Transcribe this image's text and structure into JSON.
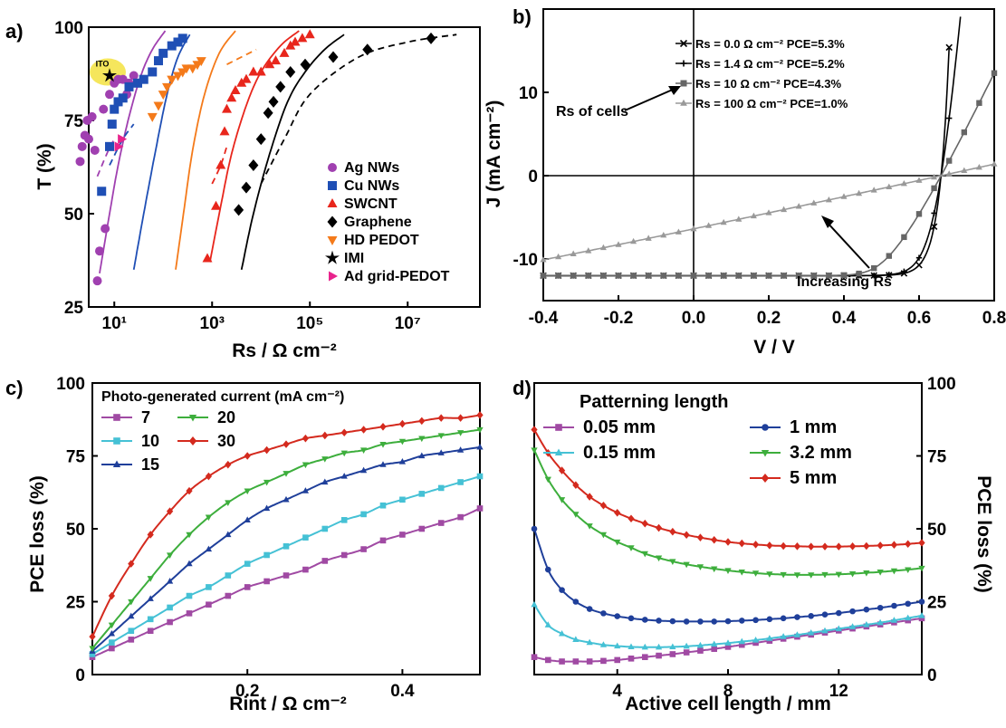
{
  "chart_data": [
    {
      "panel": "a)",
      "type": "scatter",
      "xscale": "log",
      "xlabel": "Rs / Ω cm⁻²",
      "ylabel": "T (%)",
      "xlim": [
        3,
        300000000
      ],
      "ylim": [
        25,
        100
      ],
      "xticks": [
        {
          "v": 10,
          "label": "10¹"
        },
        {
          "v": 1000,
          "label": "10³"
        },
        {
          "v": 100000,
          "label": "10⁵"
        },
        {
          "v": 10000000,
          "label": "10⁷"
        }
      ],
      "yticks": [
        25,
        50,
        75,
        100
      ],
      "ito_label": "ITO",
      "ito_point": [
        8,
        87
      ],
      "series": [
        {
          "name": "Ag NWs",
          "color": "#a040b0",
          "marker": "circle",
          "points": [
            [
              4.5,
              32
            ],
            [
              5,
              40
            ],
            [
              6.5,
              46
            ],
            [
              2,
              64
            ],
            [
              2.2,
              68
            ],
            [
              2.5,
              71
            ],
            [
              3,
              70
            ],
            [
              2.8,
              75
            ],
            [
              3.5,
              76
            ],
            [
              4,
              67
            ],
            [
              6,
              78
            ],
            [
              8,
              82
            ],
            [
              10,
              85
            ],
            [
              12,
              86
            ],
            [
              15,
              86
            ],
            [
              20,
              85
            ],
            [
              25,
              87
            ],
            [
              18,
              82
            ]
          ],
          "fit": [
            [
              5,
              34
            ],
            [
              8,
              50
            ],
            [
              12,
              63
            ],
            [
              20,
              76
            ],
            [
              35,
              87
            ],
            [
              60,
              94
            ],
            [
              110,
              99
            ]
          ],
          "dash": [
            [
              4.5,
              60
            ],
            [
              7,
              66
            ],
            [
              10,
              70
            ]
          ]
        },
        {
          "name": "Cu NWs",
          "color": "#1f4fb5",
          "marker": "square",
          "points": [
            [
              5.5,
              56
            ],
            [
              8,
              68
            ],
            [
              9,
              74
            ],
            [
              10,
              78
            ],
            [
              12,
              80
            ],
            [
              15,
              81
            ],
            [
              20,
              84
            ],
            [
              30,
              85
            ],
            [
              40,
              86
            ],
            [
              60,
              88
            ],
            [
              80,
              91
            ],
            [
              100,
              93
            ],
            [
              150,
              95
            ],
            [
              200,
              96
            ],
            [
              250,
              97
            ]
          ],
          "fit": [
            [
              25,
              35
            ],
            [
              40,
              50
            ],
            [
              70,
              67
            ],
            [
              120,
              82
            ],
            [
              200,
              92
            ],
            [
              350,
              98
            ]
          ],
          "dash": [
            [
              8,
              63
            ],
            [
              15,
              70
            ],
            [
              25,
              74
            ]
          ]
        },
        {
          "name": "SWCNT",
          "color": "#e8261c",
          "marker": "triangle",
          "points": [
            [
              800,
              38
            ],
            [
              1200,
              52
            ],
            [
              1500,
              63
            ],
            [
              1800,
              72
            ],
            [
              2000,
              78
            ],
            [
              2500,
              81
            ],
            [
              3000,
              83
            ],
            [
              4000,
              85
            ],
            [
              5000,
              86
            ],
            [
              7000,
              88
            ],
            [
              10000,
              88
            ],
            [
              15000,
              90
            ],
            [
              20000,
              91
            ],
            [
              30000,
              93
            ],
            [
              40000,
              95
            ],
            [
              50000,
              96
            ],
            [
              70000,
              97
            ],
            [
              100000,
              98
            ]
          ],
          "fit": [
            [
              900,
              37
            ],
            [
              1500,
              52
            ],
            [
              2500,
              66
            ],
            [
              5000,
              79
            ],
            [
              10000,
              88
            ],
            [
              25000,
              95
            ],
            [
              60000,
              99
            ]
          ],
          "dash": [
            [
              1000,
              58
            ],
            [
              1500,
              63
            ],
            [
              2000,
              68
            ]
          ]
        },
        {
          "name": "Graphene",
          "color": "#000000",
          "marker": "diamond",
          "points": [
            [
              3500,
              51
            ],
            [
              5000,
              57
            ],
            [
              7000,
              63
            ],
            [
              10000,
              70
            ],
            [
              14000,
              77
            ],
            [
              18000,
              80
            ],
            [
              25000,
              84
            ],
            [
              40000,
              88
            ],
            [
              80000,
              90
            ],
            [
              300000,
              92
            ],
            [
              1500000,
              94
            ],
            [
              30000000,
              97
            ]
          ],
          "fit": [
            [
              4000,
              35
            ],
            [
              7000,
              50
            ],
            [
              15000,
              66
            ],
            [
              35000,
              80
            ],
            [
              80000,
              88
            ],
            [
              200000,
              94
            ],
            [
              500000,
              98
            ]
          ],
          "dash": [
            [
              10000,
              58
            ],
            [
              30000,
              70
            ],
            [
              100000,
              82
            ],
            [
              1000000,
              92
            ],
            [
              10000000,
              96
            ],
            [
              100000000,
              98
            ]
          ]
        },
        {
          "name": "HD PEDOT",
          "color": "#f47a1a",
          "marker": "triangle-down",
          "points": [
            [
              60,
              76
            ],
            [
              80,
              79
            ],
            [
              100,
              82
            ],
            [
              120,
              84
            ],
            [
              150,
              86
            ],
            [
              200,
              87
            ],
            [
              250,
              88
            ],
            [
              300,
              89
            ],
            [
              400,
              89
            ],
            [
              500,
              90
            ],
            [
              600,
              91
            ]
          ],
          "fit": [
            [
              180,
              35
            ],
            [
              260,
              50
            ],
            [
              400,
              67
            ],
            [
              700,
              82
            ],
            [
              1400,
              93
            ],
            [
              3000,
              99
            ]
          ],
          "dash": [
            [
              2000,
              90
            ],
            [
              4000,
              92
            ],
            [
              8000,
              94
            ]
          ]
        },
        {
          "name": "IMI",
          "color": "#000000",
          "marker": "star",
          "points": [
            [
              8,
              87
            ]
          ]
        },
        {
          "name": "Ad grid-PEDOT",
          "color": "#e8238c",
          "marker": "triangle-right",
          "points": [
            [
              12,
              68
            ],
            [
              14,
              70
            ]
          ]
        }
      ]
    },
    {
      "panel": "b)",
      "type": "line",
      "xlabel": "V / V",
      "ylabel": "J (mA cm⁻²)",
      "xlim": [
        -0.4,
        0.8
      ],
      "ylim": [
        -15,
        20
      ],
      "xticks": [
        -0.4,
        -0.2,
        0.0,
        0.2,
        0.4,
        0.6,
        0.8
      ],
      "yticks": [
        -10,
        0,
        10
      ],
      "xticklabels": [
        "-0.4",
        "-0.2",
        "0.0",
        "0.2",
        "0.4",
        "0.6",
        "0.8"
      ],
      "annotation_rs": "Rs of cells",
      "annotation_inc": "Increasing Rs",
      "series": [
        {
          "name": "Rs = 0.0 Ω cm⁻² PCE=5.3%",
          "color": "#000000",
          "marker": "x",
          "rs": 0
        },
        {
          "name": "Rs = 1.4 Ω cm⁻² PCE=5.2%",
          "color": "#000000",
          "marker": "plus",
          "rs": 1.4
        },
        {
          "name": "Rs = 10 Ω cm⁻² PCE=4.3%",
          "color": "#666666",
          "marker": "square",
          "rs": 10
        },
        {
          "name": "Rs = 100 Ω cm⁻² PCE=1.0%",
          "color": "#999999",
          "marker": "triangle",
          "rs": 100
        }
      ]
    },
    {
      "panel": "c)",
      "type": "line",
      "xlabel": "Rint / Ω cm⁻²",
      "ylabel": "PCE loss (%)",
      "xlim": [
        0,
        0.5
      ],
      "ylim": [
        0,
        100
      ],
      "xticks": [
        0.2,
        0.4
      ],
      "xticklabels": [
        "0.2",
        "0.4"
      ],
      "yticks": [
        0,
        25,
        50,
        75,
        100
      ],
      "legend_title": "Photo-generated current (mA cm⁻²)",
      "x": [
        0.0,
        0.025,
        0.05,
        0.075,
        0.1,
        0.125,
        0.15,
        0.175,
        0.2,
        0.225,
        0.25,
        0.275,
        0.3,
        0.325,
        0.35,
        0.375,
        0.4,
        0.425,
        0.45,
        0.475,
        0.5
      ],
      "series": [
        {
          "name": "7",
          "color": "#a04aa3",
          "marker": "square",
          "values": [
            6,
            9,
            12,
            15,
            18,
            21,
            24,
            27,
            30,
            32,
            34,
            36,
            39,
            41,
            43,
            46,
            48,
            50,
            52,
            54,
            57
          ]
        },
        {
          "name": "10",
          "color": "#45c1d5",
          "marker": "square",
          "values": [
            7,
            11,
            15,
            19,
            23,
            27,
            30,
            34,
            38,
            41,
            44,
            47,
            50,
            53,
            55,
            58,
            60,
            62,
            64,
            66,
            68
          ]
        },
        {
          "name": "15",
          "color": "#1f3f9a",
          "marker": "triangle",
          "values": [
            8,
            14,
            20,
            26,
            32,
            38,
            43,
            48,
            53,
            57,
            60,
            63,
            66,
            68,
            70,
            72,
            73,
            75,
            76,
            77,
            78
          ]
        },
        {
          "name": "20",
          "color": "#3dae3c",
          "marker": "triangle-down",
          "values": [
            9,
            17,
            25,
            33,
            41,
            48,
            54,
            59,
            63,
            66,
            69,
            72,
            74,
            76,
            77,
            79,
            80,
            81,
            82,
            83,
            84
          ]
        },
        {
          "name": "30",
          "color": "#d42a1e",
          "marker": "diamond",
          "values": [
            13,
            27,
            38,
            48,
            56,
            63,
            68,
            72,
            75,
            77,
            79,
            81,
            82,
            83,
            84,
            85,
            86,
            87,
            88,
            88,
            89
          ]
        }
      ]
    },
    {
      "panel": "d)",
      "type": "line",
      "xlabel": "Active cell length / mm",
      "ylabel": "PCE loss (%)",
      "xlim": [
        1,
        15
      ],
      "ylim": [
        0,
        100
      ],
      "xticks": [
        4,
        8,
        12
      ],
      "xticklabels": [
        "4",
        "8",
        "12"
      ],
      "yticks": [
        0,
        25,
        50,
        75,
        100
      ],
      "legend_title": "Patterning length",
      "x": [
        1,
        1.5,
        2,
        2.5,
        3,
        3.5,
        4,
        4.5,
        5,
        5.5,
        6,
        6.5,
        7,
        7.5,
        8,
        8.5,
        9,
        9.5,
        10,
        10.5,
        11,
        11.5,
        12,
        12.5,
        13,
        13.5,
        14,
        14.5,
        15
      ],
      "series": [
        {
          "name": "0.05 mm",
          "color": "#a04aa3",
          "marker": "square",
          "values": [
            6,
            5,
            4.5,
            4.5,
            4.5,
            4.7,
            5,
            5.5,
            6,
            6.5,
            7,
            7.6,
            8.2,
            8.8,
            9.5,
            10.2,
            10.9,
            11.6,
            12.3,
            13,
            13.7,
            14.4,
            15.1,
            15.8,
            16.5,
            17.2,
            17.9,
            18.6,
            19.3
          ]
        },
        {
          "name": "0.15 mm",
          "color": "#45c1d5",
          "marker": "triangle",
          "values": [
            24,
            17,
            14,
            12,
            11,
            10.2,
            9.8,
            9.5,
            9.4,
            9.4,
            9.5,
            9.7,
            10,
            10.4,
            10.8,
            11.3,
            11.8,
            12.4,
            13,
            13.6,
            14.3,
            15,
            15.7,
            16.4,
            17.1,
            17.8,
            18.6,
            19.4,
            20.2
          ]
        },
        {
          "name": "1 mm",
          "color": "#1f3f9a",
          "marker": "circle",
          "values": [
            50,
            36,
            29,
            25,
            22.5,
            21,
            20,
            19.3,
            18.8,
            18.5,
            18.3,
            18.2,
            18.2,
            18.2,
            18.3,
            18.5,
            18.7,
            19,
            19.3,
            19.7,
            20.1,
            20.6,
            21.1,
            21.7,
            22.3,
            22.9,
            23.6,
            24.3,
            25
          ]
        },
        {
          "name": "3.2 mm",
          "color": "#3dae3c",
          "marker": "triangle-down",
          "values": [
            77,
            67,
            60,
            55,
            51,
            48,
            45.5,
            43.5,
            41.5,
            40,
            38.8,
            37.8,
            37,
            36.3,
            35.7,
            35.2,
            34.8,
            34.5,
            34.3,
            34.2,
            34.2,
            34.3,
            34.4,
            34.6,
            34.9,
            35.2,
            35.6,
            36,
            36.5
          ]
        },
        {
          "name": "5 mm",
          "color": "#d42a1e",
          "marker": "diamond",
          "values": [
            84,
            76,
            70,
            65,
            61,
            58,
            55.5,
            53.5,
            51.8,
            50.3,
            49,
            47.9,
            47,
            46.2,
            45.5,
            45,
            44.6,
            44.3,
            44.1,
            44,
            43.9,
            43.9,
            43.9,
            44,
            44.1,
            44.3,
            44.5,
            44.8,
            45.2
          ]
        }
      ]
    }
  ]
}
